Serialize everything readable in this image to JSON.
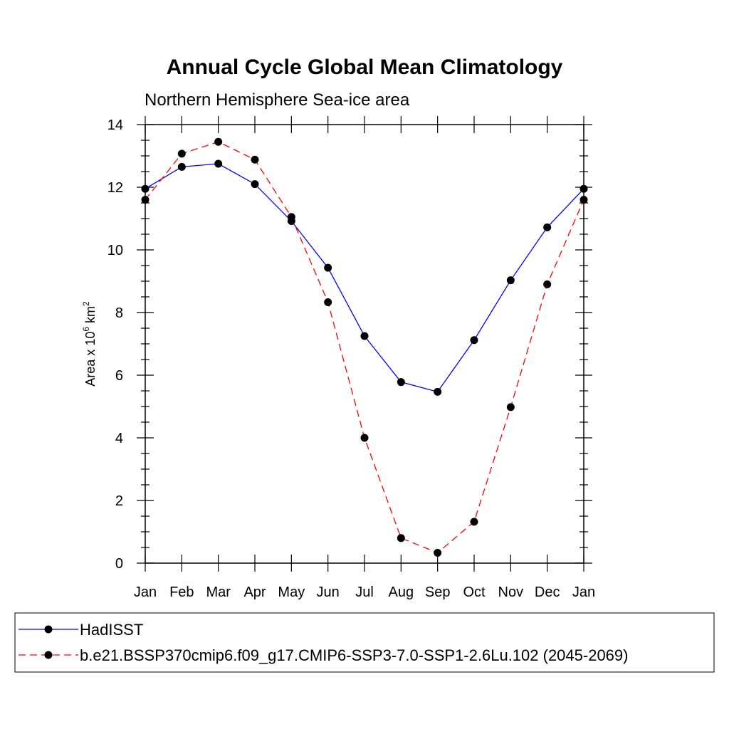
{
  "chart_data": {
    "type": "line",
    "title": "Annual Cycle Global Mean Climatology",
    "subtitle": "Northern Hemisphere Sea-ice area",
    "ylabel": {
      "prefix": "Area x 10",
      "exp1": "6",
      "mid": " km",
      "exp2": "2"
    },
    "categories": [
      "Jan",
      "Feb",
      "Mar",
      "Apr",
      "May",
      "Jun",
      "Jul",
      "Aug",
      "Sep",
      "Oct",
      "Nov",
      "Dec",
      "Jan"
    ],
    "ylim": [
      0,
      14
    ],
    "yticks": [
      "0",
      "2",
      "4",
      "6",
      "8",
      "10",
      "12",
      "14"
    ],
    "series": [
      {
        "name": "HadISST",
        "color": "#0000ff",
        "dash": "solid",
        "values": [
          11.95,
          12.65,
          12.75,
          12.1,
          10.92,
          9.43,
          7.25,
          5.78,
          5.47,
          7.12,
          9.03,
          10.72,
          11.95
        ]
      },
      {
        "name": "b.e21.BSSP370cmip6.f09_g17.CMIP6-SSP3-7.0-SSP1-2.6Lu.102 (2045-2069)",
        "color": "#ff0000",
        "dash": "dashed",
        "values": [
          11.6,
          13.07,
          13.45,
          12.88,
          11.05,
          8.33,
          4.0,
          0.8,
          0.33,
          1.32,
          4.98,
          8.9,
          11.6
        ]
      }
    ],
    "legend_position": "bottom"
  }
}
